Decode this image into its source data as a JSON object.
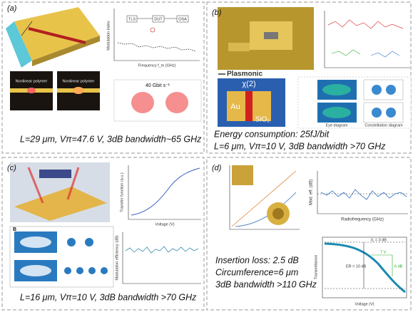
{
  "panels": [
    {
      "label": "(a)",
      "plot_ylabel": "Modulation index",
      "plot_xlabel": "Frequency f_m (GHz)",
      "setup": [
        "TLS",
        "DUT",
        "OSA"
      ],
      "image_labels": [
        "Nonlinear polymer",
        "Nonlinear polymer"
      ],
      "scatter_label": "40 Gbit s⁻¹",
      "caption": "L=29 μm, Vπ=47.6 V, 3dB bandwidth~65 GHz"
    },
    {
      "label": "(b)",
      "section_title": "Plasmonic",
      "materials": [
        "χ(2)",
        "Au",
        "SiO₂"
      ],
      "diagram_labels": [
        "Eye diagram",
        "Constellation diagram"
      ],
      "caption_lines": [
        "Energy consumption: 25fJ/bit",
        "L=6 μm, Vπ=10 V, 3dB bandwidth >70 GHz"
      ]
    },
    {
      "label": "(c)",
      "plot_ylabel": "Transfer function (a.u.)",
      "plot_xlabel": "Voltage (V)",
      "inset_label": "B",
      "plot2_ylabel": "Modulation efficiency (dB)",
      "caption": "L=16 μm, Vπ=10 V, 3dB bandwidth >70 GHz"
    },
    {
      "label": "(d)",
      "plot_ylabel": "Mod. eff. (dB)",
      "plot_xlabel": "Radiofrequency (GHz)",
      "plot2_ylabel": "Transmittance",
      "plot2_xlabel": "Voltage (V)",
      "annotations": [
        "IL = 3 dB",
        "ER = 10 dB",
        "7 V",
        "6 dB"
      ],
      "caption_lines": [
        "Insertion loss: 2.5 dB",
        "Circumference=6 μm",
        "3dB bandwidth >110 GHz"
      ]
    }
  ]
}
